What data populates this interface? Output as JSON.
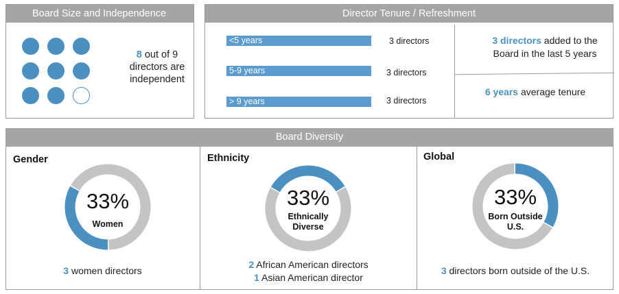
{
  "board_size": {
    "title": "Board Size and Independence",
    "dots_total": 9,
    "dots_filled": 8,
    "independent_count": "8",
    "independent_text": " out of 9 directors are independent"
  },
  "tenure": {
    "title": "Director Tenure / Refreshment",
    "bars": [
      {
        "label": "<5 years",
        "count_label": "3 directors"
      },
      {
        "label": "5-9 years",
        "count_label": "3 directors"
      },
      {
        "label": "> 9 years",
        "count_label": "3 directors"
      }
    ],
    "added_count": "3 directors",
    "added_text": " added to the Board in the last 5 years",
    "avg_value": "6 years",
    "avg_text": " average tenure"
  },
  "diversity": {
    "title": "Board Diversity",
    "gender": {
      "title": "Gender",
      "pct_label": "33%",
      "label_lines": [
        "Women"
      ],
      "foot": [
        {
          "num": "3",
          "text": " women directors"
        }
      ]
    },
    "ethnicity": {
      "title": "Ethnicity",
      "pct_label": "33%",
      "label_lines": [
        "Ethnically",
        "Diverse"
      ],
      "foot": [
        {
          "num": "2",
          "text": " African American directors"
        },
        {
          "num": "1",
          "text": " Asian American director"
        }
      ]
    },
    "global": {
      "title": "Global",
      "pct_label": "33%",
      "label_lines": [
        "Born Outside",
        "U.S."
      ],
      "foot": [
        {
          "num": "3",
          "text": " directors born outside of the U.S."
        }
      ]
    }
  },
  "colors": {
    "accent": "#4a90c0",
    "bar": "#5b9bd0",
    "ring": "#c4c4c4",
    "header": "#a5a5a5"
  },
  "chart_data": [
    {
      "type": "bar",
      "categories": [
        "<5 years",
        "5-9 years",
        "> 9 years"
      ],
      "values": [
        3,
        3,
        3
      ],
      "title": "Director Tenure / Refreshment"
    },
    {
      "type": "pie",
      "title": "Gender",
      "categories": [
        "Women",
        ""
      ],
      "values": [
        33,
        67
      ]
    },
    {
      "type": "pie",
      "title": "Ethnicity",
      "categories": [
        "Ethnically Diverse",
        ""
      ],
      "values": [
        33,
        67
      ]
    },
    {
      "type": "pie",
      "title": "Global",
      "categories": [
        "Born Outside U.S.",
        ""
      ],
      "values": [
        33,
        67
      ]
    }
  ]
}
